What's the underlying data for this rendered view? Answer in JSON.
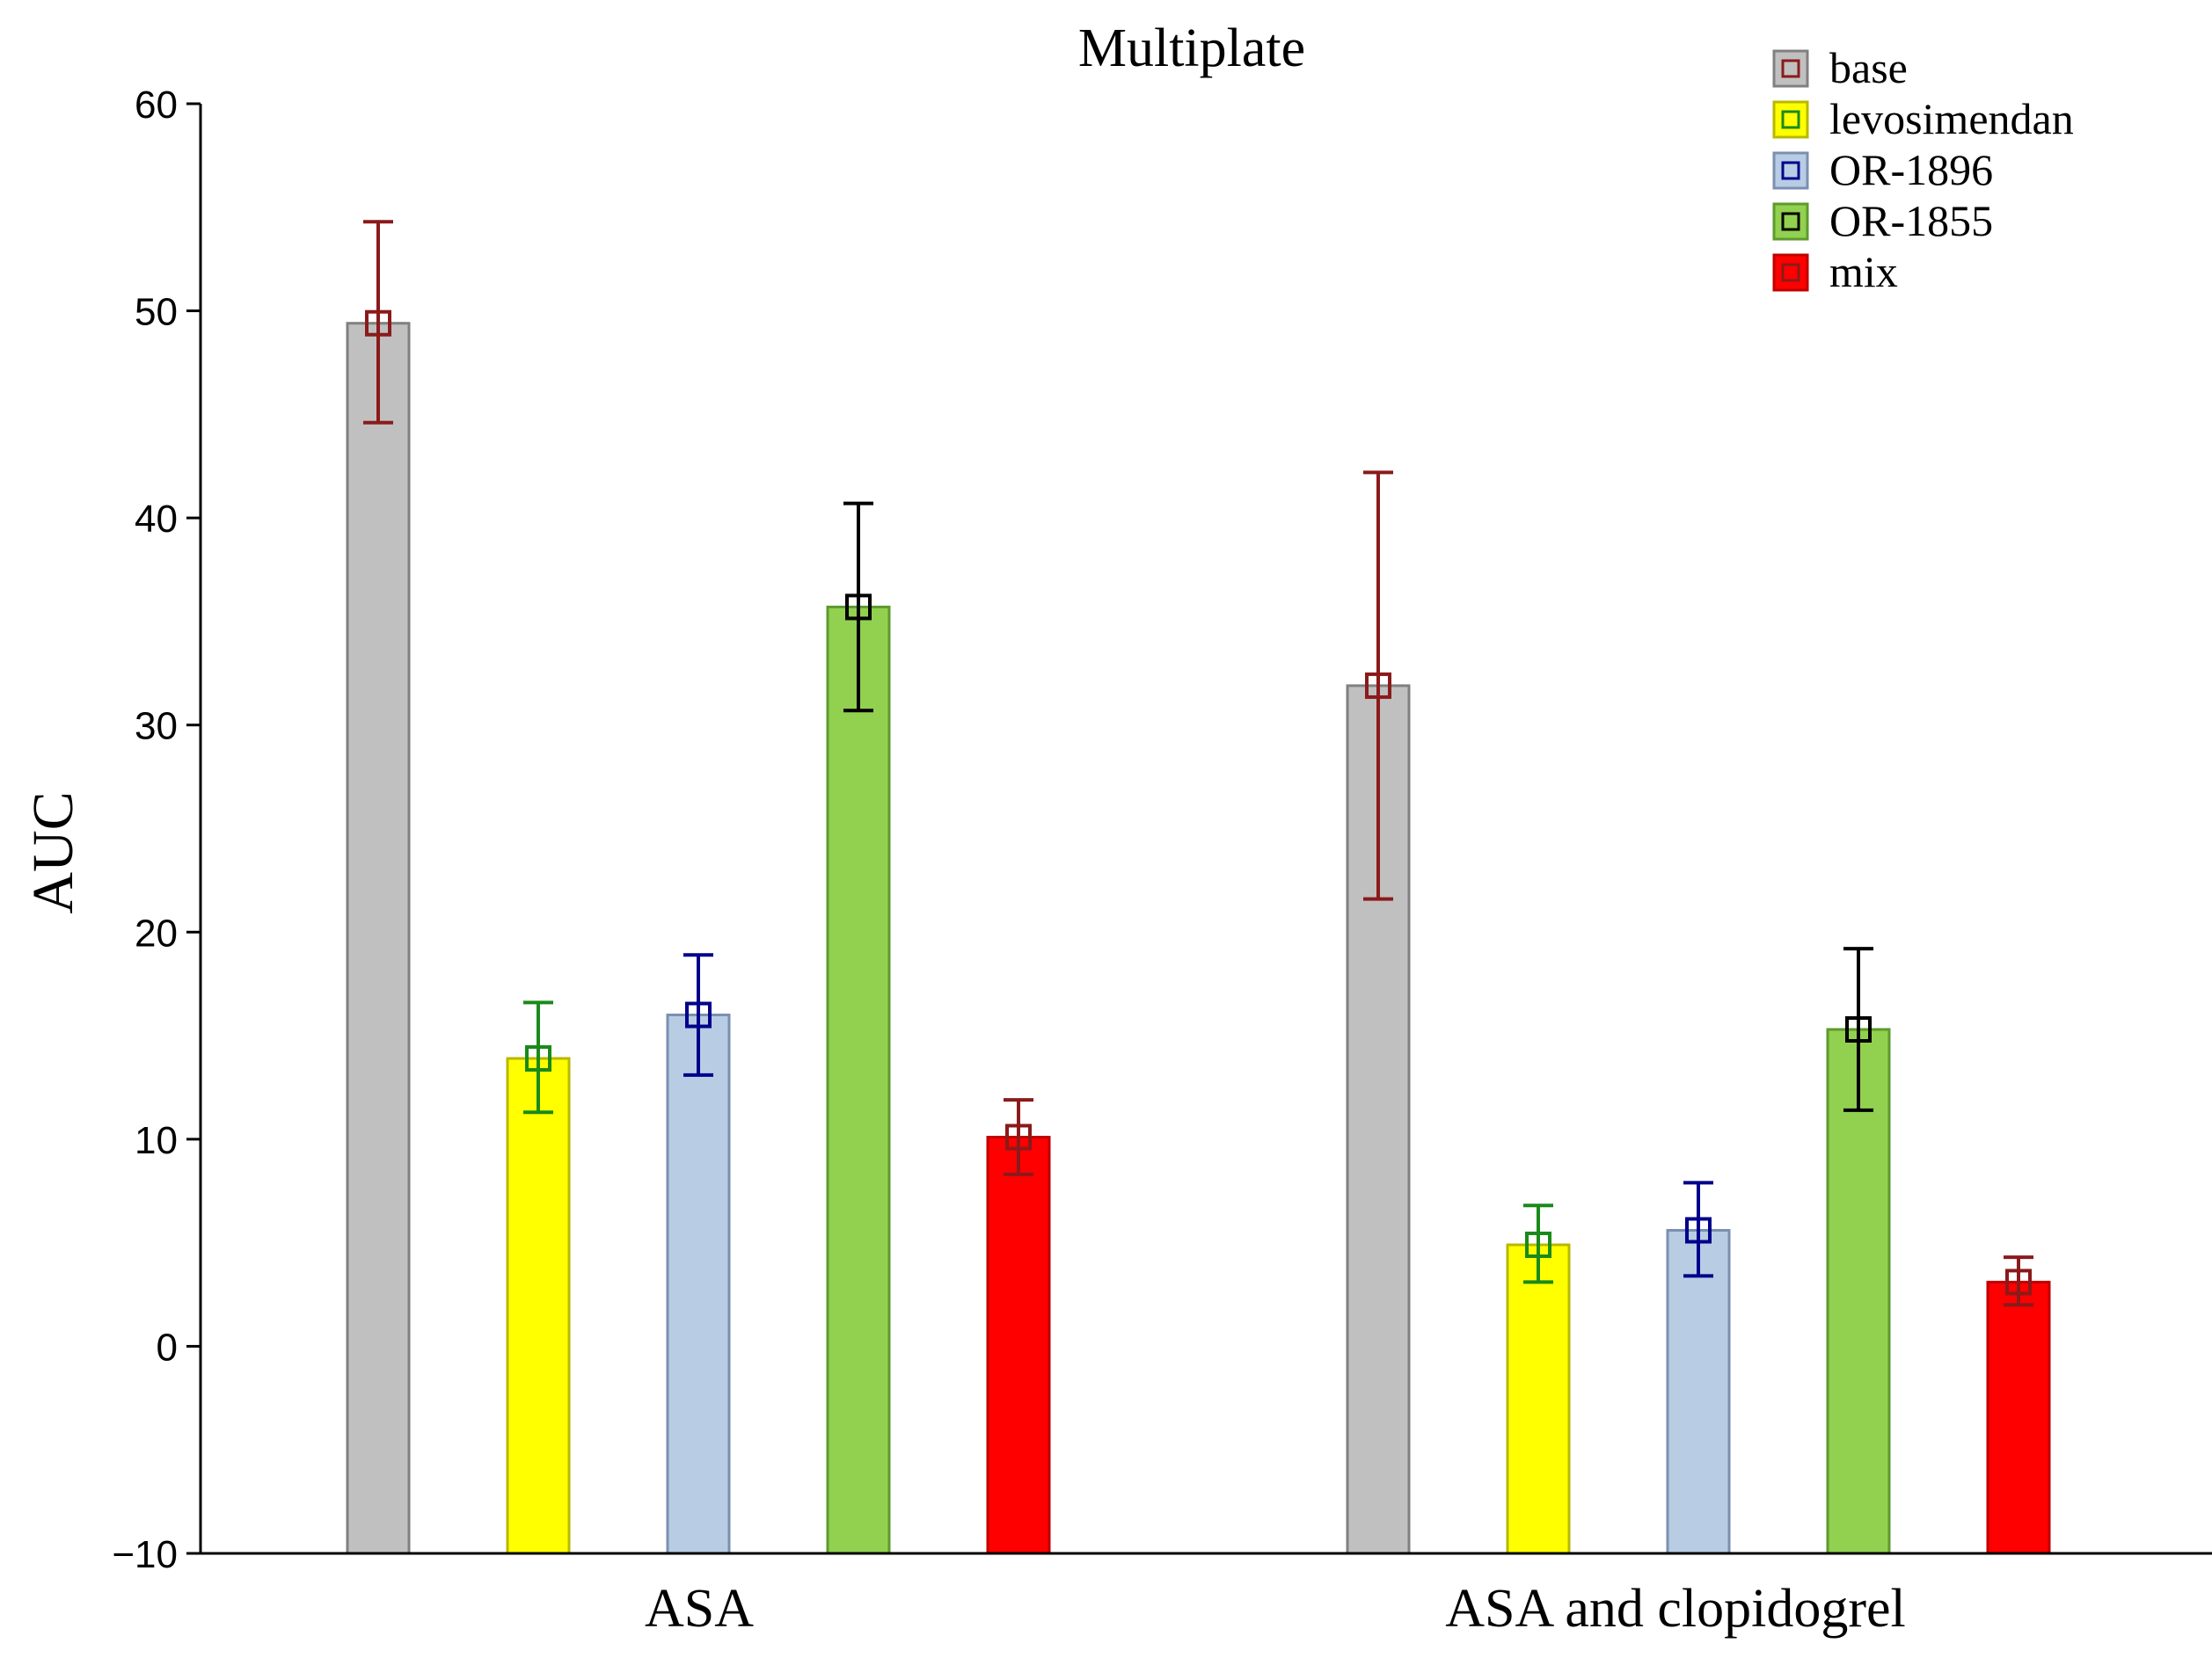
{
  "chart_data": {
    "type": "bar",
    "title": "Multiplate",
    "xlabel": "",
    "ylabel": "AUC",
    "ylim": [
      -10,
      60
    ],
    "yticks": [
      -10,
      0,
      10,
      20,
      30,
      40,
      50,
      60
    ],
    "grid": false,
    "legend_position": "top-right",
    "categories": [
      "ASA",
      "ASA and clopidogrel"
    ],
    "series": [
      {
        "name": "base",
        "color": "#c0c0c0",
        "stroke": "#808080",
        "marker_color": "#8b1a1a",
        "values": [
          49.4,
          31.9
        ],
        "err_low": [
          44.6,
          21.6
        ],
        "err_high": [
          54.3,
          42.2
        ]
      },
      {
        "name": "levosimendan",
        "color": "#ffff00",
        "stroke": "#b8b800",
        "marker_color": "#1a8a1a",
        "values": [
          13.9,
          4.9
        ],
        "err_low": [
          11.3,
          3.1
        ],
        "err_high": [
          16.6,
          6.8
        ]
      },
      {
        "name": "OR-1896",
        "color": "#b8cce4",
        "stroke": "#7b8fb0",
        "marker_color": "#00008b",
        "values": [
          16.0,
          5.6
        ],
        "err_low": [
          13.1,
          3.4
        ],
        "err_high": [
          18.9,
          7.9
        ]
      },
      {
        "name": "OR-1855",
        "color": "#92d050",
        "stroke": "#5e9a2e",
        "marker_color": "#000000",
        "values": [
          35.7,
          15.3
        ],
        "err_low": [
          30.7,
          11.4
        ],
        "err_high": [
          40.7,
          19.2
        ]
      },
      {
        "name": "mix",
        "color": "#ff0000",
        "stroke": "#c00000",
        "marker_color": "#8b1a1a",
        "values": [
          10.1,
          3.1
        ],
        "err_low": [
          8.3,
          2.0
        ],
        "err_high": [
          11.9,
          4.3
        ]
      }
    ]
  }
}
